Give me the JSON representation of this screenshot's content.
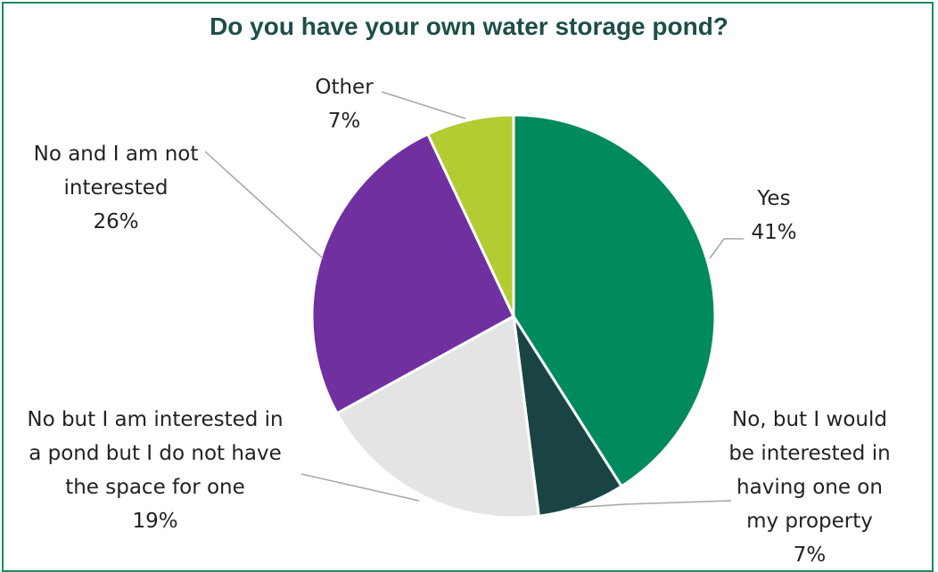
{
  "chart_data": {
    "type": "pie",
    "title": "Do you have your own water storage pond?",
    "slices": [
      {
        "label_lines": [
          "Yes"
        ],
        "pct_label": "41%",
        "value": 41,
        "color": "#008a5e"
      },
      {
        "label_lines": [
          "No, but I would",
          "be interested in",
          "having one on",
          "my property"
        ],
        "pct_label": "7%",
        "value": 7,
        "color": "#1a4444"
      },
      {
        "label_lines": [
          "No but I am interested in",
          "a pond but I do not have",
          "the space for one"
        ],
        "pct_label": "19%",
        "value": 19,
        "color": "#e4e4e4"
      },
      {
        "label_lines": [
          "No and I am not",
          "interested"
        ],
        "pct_label": "26%",
        "value": 26,
        "color": "#7030a0"
      },
      {
        "label_lines": [
          "Other"
        ],
        "pct_label": "7%",
        "value": 7,
        "color": "#b2cc32"
      }
    ]
  }
}
